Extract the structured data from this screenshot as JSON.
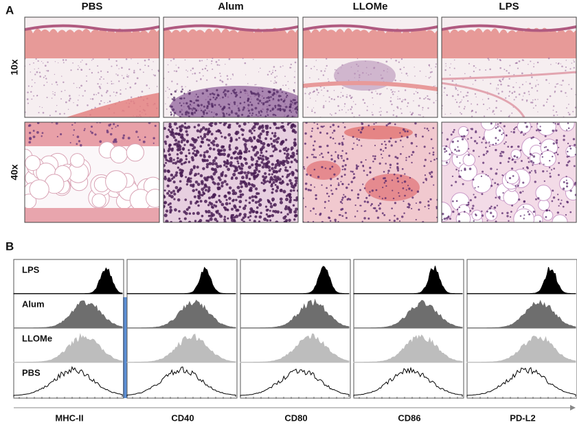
{
  "panel_a": {
    "label": "A",
    "columns": [
      "PBS",
      "Alum",
      "LLOMe",
      "LPS"
    ],
    "rows": [
      "10x",
      "40x"
    ]
  },
  "panel_b": {
    "label": "B",
    "conditions": [
      "LPS",
      "Alum",
      "LLOMe",
      "PBS"
    ],
    "markers": [
      "MHC-II",
      "CD40",
      "CD80",
      "CD86",
      "PD-L2"
    ]
  }
}
